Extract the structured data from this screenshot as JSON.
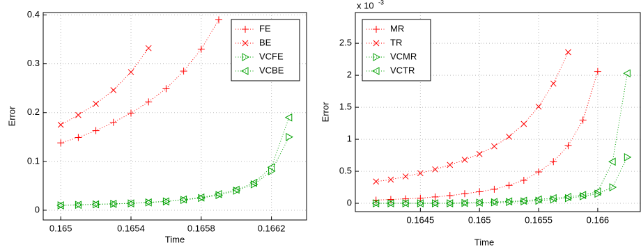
{
  "chart_data": [
    {
      "type": "line",
      "x_label": "Time",
      "y_label": "Error",
      "x": [
        0.165,
        0.1651,
        0.1652,
        0.1653,
        0.1654,
        0.1655,
        0.1656,
        0.1657,
        0.1658,
        0.1659,
        0.166,
        0.1661,
        0.1662,
        0.1663
      ],
      "series": [
        {
          "name": "FE",
          "color": "#ff0000",
          "marker": "+",
          "values": [
            0.138,
            0.149,
            0.163,
            0.18,
            0.199,
            0.222,
            0.249,
            0.285,
            0.33,
            0.39,
            null,
            null,
            null,
            null
          ]
        },
        {
          "name": "BE",
          "color": "#ff0000",
          "marker": "x",
          "values": [
            0.175,
            0.195,
            0.218,
            0.246,
            0.283,
            0.332,
            null,
            null,
            null,
            null,
            null,
            null,
            null,
            null
          ]
        },
        {
          "name": "VCFE",
          "color": "#00a000",
          "marker": ">",
          "values": [
            0.01,
            0.011,
            0.012,
            0.013,
            0.014,
            0.016,
            0.018,
            0.021,
            0.025,
            0.031,
            0.04,
            0.053,
            0.08,
            0.15
          ]
        },
        {
          "name": "VCBE",
          "color": "#00a000",
          "marker": "<",
          "values": [
            0.01,
            0.011,
            0.012,
            0.013,
            0.014,
            0.016,
            0.018,
            0.022,
            0.026,
            0.033,
            0.042,
            0.056,
            0.088,
            0.19
          ]
        }
      ],
      "xlim": [
        0.1649,
        0.1664
      ],
      "ylim": [
        -0.02,
        0.405
      ],
      "xticks": [
        0.165,
        0.1654,
        0.1658,
        0.1662
      ],
      "yticks": [
        0,
        0.1,
        0.2,
        0.3,
        0.4
      ],
      "grid": true,
      "legend": "upper right"
    },
    {
      "type": "line",
      "x_label": "Time",
      "y_label": "Error",
      "y_multiplier": "x 10",
      "y_exponent": "-3",
      "x": [
        0.164125,
        0.16425,
        0.164375,
        0.1645,
        0.164625,
        0.16475,
        0.164875,
        0.165,
        0.165125,
        0.16525,
        0.165375,
        0.1655,
        0.165625,
        0.16575,
        0.165875,
        0.166,
        0.166125,
        0.16625
      ],
      "series": [
        {
          "name": "MR",
          "color": "#ff0000",
          "marker": "+",
          "values": [
            0.05,
            0.06,
            0.07,
            0.08,
            0.1,
            0.12,
            0.15,
            0.18,
            0.22,
            0.28,
            0.36,
            0.49,
            0.65,
            0.9,
            1.3,
            2.06,
            null,
            null
          ]
        },
        {
          "name": "TR",
          "color": "#ff0000",
          "marker": "x",
          "values": [
            0.34,
            0.37,
            0.42,
            0.47,
            0.53,
            0.6,
            0.68,
            0.77,
            0.89,
            1.04,
            1.24,
            1.51,
            1.87,
            2.36,
            null,
            null,
            null,
            null
          ]
        },
        {
          "name": "VCMR",
          "color": "#00a000",
          "marker": ">",
          "values": [
            0,
            0,
            0,
            0,
            0,
            0,
            0.005,
            0.01,
            0.015,
            0.02,
            0.03,
            0.04,
            0.06,
            0.08,
            0.11,
            0.15,
            0.25,
            0.72
          ]
        },
        {
          "name": "VCTR",
          "color": "#00a000",
          "marker": "<",
          "values": [
            0,
            0,
            0,
            0,
            0,
            0,
            0.005,
            0.01,
            0.02,
            0.03,
            0.04,
            0.06,
            0.08,
            0.1,
            0.13,
            0.18,
            0.65,
            2.03
          ]
        }
      ],
      "xlim": [
        0.16395,
        0.16636
      ],
      "ylim": [
        -0.13,
        2.98
      ],
      "xticks": [
        0.1645,
        0.165,
        0.1655,
        0.166
      ],
      "yticks": [
        0,
        0.5,
        1,
        1.5,
        2,
        2.5
      ],
      "grid": true,
      "legend": "upper left"
    }
  ]
}
